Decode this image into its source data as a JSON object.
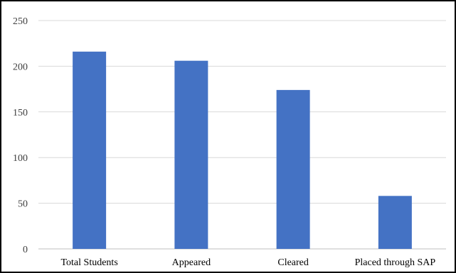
{
  "chart_data": {
    "type": "bar",
    "categories": [
      "Total Students",
      "Appeared",
      "Cleared",
      "Placed through SAP"
    ],
    "values": [
      216,
      206,
      174,
      58
    ],
    "ylim": [
      0,
      250
    ],
    "yticks": [
      0,
      50,
      100,
      150,
      200,
      250
    ],
    "grid": true,
    "legend": "none",
    "colors": {
      "bar": "#4472C4",
      "grid": "#D9D9D9",
      "axis": "#BFBFBF",
      "border": "#000000"
    }
  }
}
